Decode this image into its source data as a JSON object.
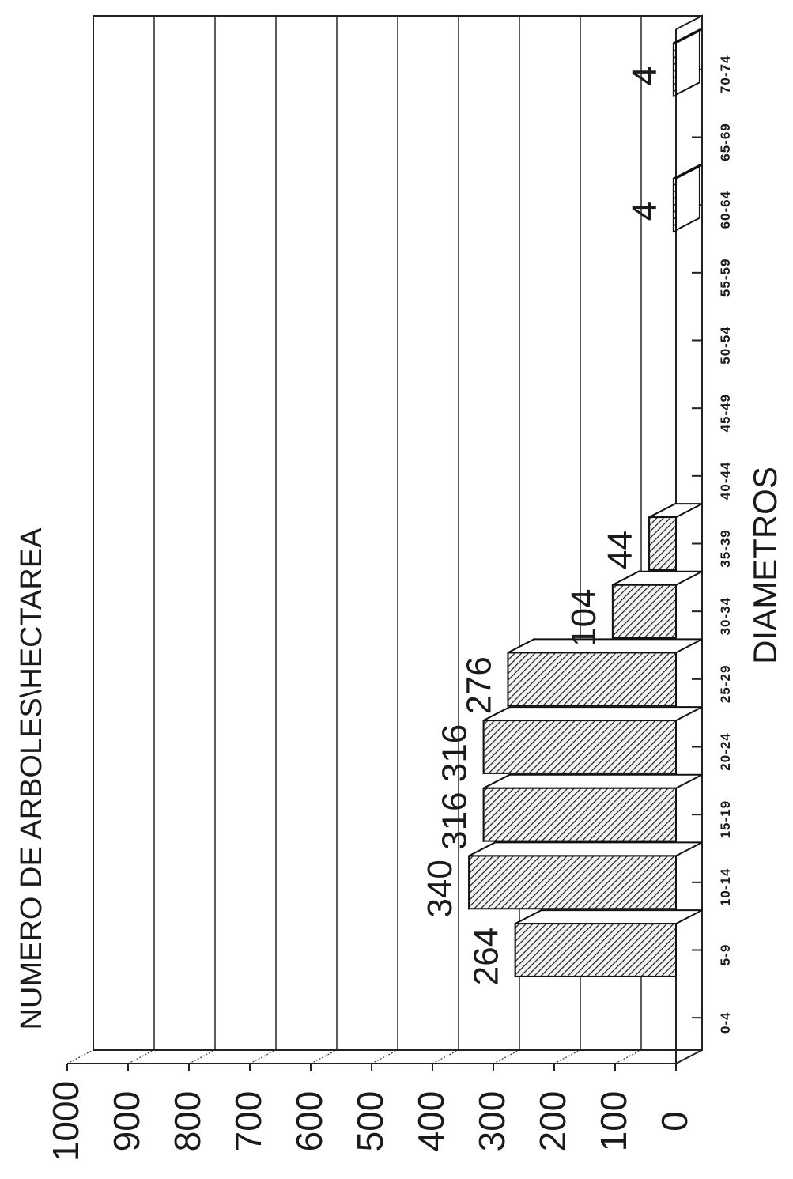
{
  "chart_data": {
    "type": "bar",
    "title": "",
    "ylabel": "NUMERO DE ARBOLES\\HECTAREA",
    "xlabel": "DIAMETROS",
    "categories": [
      "0-4",
      "5-9",
      "10-14",
      "15-19",
      "20-24",
      "25-29",
      "30-34",
      "35-39",
      "40-44",
      "45-49",
      "50-54",
      "55-59",
      "60-64",
      "65-69",
      "70-74"
    ],
    "values": [
      0,
      264,
      340,
      316,
      316,
      276,
      104,
      44,
      0,
      0,
      0,
      0,
      4,
      0,
      4
    ],
    "value_labels": [
      "",
      "264",
      "340",
      "316",
      "316",
      "276",
      "104",
      "44",
      "",
      "",
      "",
      "",
      "4",
      "",
      "4"
    ],
    "yticks": [
      "0",
      "100",
      "200",
      "300",
      "400",
      "500",
      "600",
      "700",
      "800",
      "900",
      "1000"
    ],
    "ylim": [
      0,
      1000
    ],
    "grid": true,
    "style": "3d-bars-hatched",
    "orientation": "rotated-90-ccw"
  }
}
